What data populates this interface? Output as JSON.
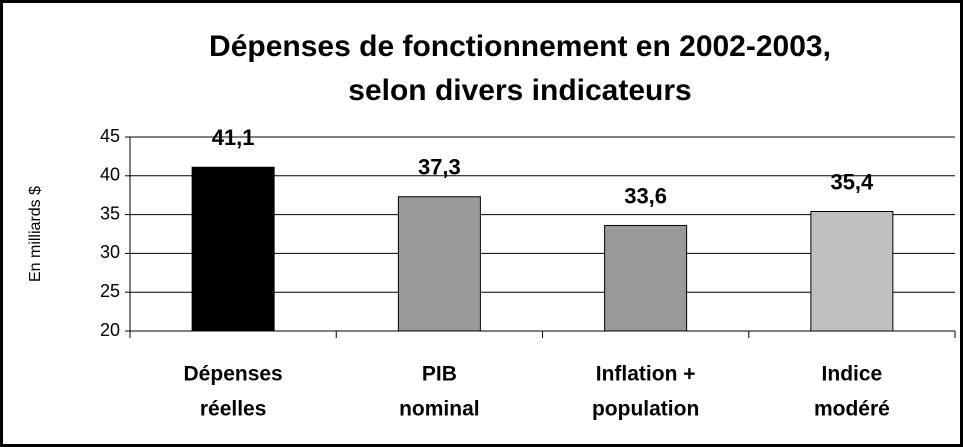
{
  "chart_data": {
    "type": "bar",
    "title": [
      "Dépenses de fonctionnement en 2002-2003,",
      "selon divers indicateurs"
    ],
    "y_label": "En milliards $",
    "categories": [
      [
        "Dépenses",
        "réelles"
      ],
      [
        "PIB",
        "nominal"
      ],
      [
        "Inflation +",
        "population"
      ],
      [
        "Indice",
        "modéré"
      ]
    ],
    "values": [
      41.1,
      37.3,
      33.6,
      35.4
    ],
    "value_labels": [
      "41,1",
      "37,3",
      "33,6",
      "35,4"
    ],
    "colors": [
      "#000000",
      "#999999",
      "#999999",
      "#c0c0c0"
    ],
    "ylim": [
      20,
      45
    ],
    "yticks": [
      20,
      25,
      30,
      35,
      40,
      45
    ],
    "grid": true
  }
}
